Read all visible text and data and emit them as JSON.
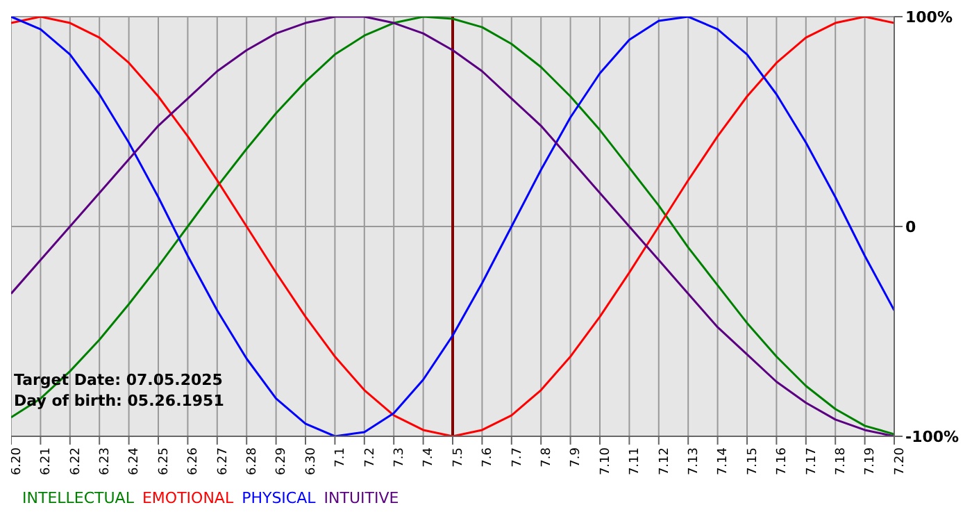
{
  "chart_data": {
    "type": "line",
    "categories": [
      "6.20",
      "6.21",
      "6.22",
      "6.23",
      "6.24",
      "6.25",
      "6.26",
      "6.27",
      "6.28",
      "6.29",
      "6.30",
      "7.1",
      "7.2",
      "7.3",
      "7.4",
      "7.5",
      "7.6",
      "7.7",
      "7.8",
      "7.9",
      "7.10",
      "7.11",
      "7.12",
      "7.13",
      "7.14",
      "7.15",
      "7.16",
      "7.17",
      "7.18",
      "7.19",
      "7.20"
    ],
    "series": [
      {
        "name": "INTELLECTUAL",
        "color": "#008000",
        "values": [
          -91,
          -82,
          -69,
          -54,
          -37,
          -19,
          0,
          19,
          37,
          54,
          69,
          82,
          91,
          97,
          100,
          99,
          95,
          87,
          76,
          62,
          46,
          28,
          10,
          -10,
          -28,
          -46,
          -62,
          -76,
          -87,
          -95,
          -99
        ]
      },
      {
        "name": "EMOTIONAL",
        "color": "#ff0000",
        "values": [
          97,
          100,
          97,
          90,
          78,
          62,
          43,
          22,
          0,
          -22,
          -43,
          -62,
          -78,
          -90,
          -97,
          -100,
          -97,
          -90,
          -78,
          -62,
          -43,
          -22,
          0,
          22,
          43,
          62,
          78,
          90,
          97,
          100,
          97
        ]
      },
      {
        "name": "PHYSICAL",
        "color": "#0000ff",
        "values": [
          100,
          94,
          82,
          63,
          40,
          14,
          -14,
          -40,
          -63,
          -82,
          -94,
          -100,
          -98,
          -89,
          -73,
          -52,
          -27,
          0,
          27,
          52,
          73,
          89,
          98,
          100,
          94,
          82,
          63,
          40,
          14,
          -14,
          -40
        ]
      },
      {
        "name": "INTUITIVE",
        "color": "#5a0080",
        "values": [
          -32,
          -16,
          0,
          16,
          32,
          48,
          61,
          74,
          84,
          92,
          97,
          100,
          100,
          97,
          92,
          84,
          74,
          61,
          48,
          32,
          16,
          0,
          -16,
          -32,
          -48,
          -61,
          -74,
          -84,
          -92,
          -97,
          -100
        ]
      }
    ],
    "ylim": [
      -100,
      100
    ],
    "yticks": [
      {
        "value": 100,
        "label": "100%"
      },
      0,
      {
        "value": -100,
        "label": "-100%"
      }
    ],
    "grid": true,
    "legend": "bottom",
    "marker": "none",
    "line_style": "solid",
    "ref_lines": [
      {
        "axis": "x",
        "value": "7.5",
        "color": "#800000"
      }
    ],
    "annotations": [
      "Target Date: 07.05.2025",
      "Day of birth: 05.26.1951"
    ]
  }
}
